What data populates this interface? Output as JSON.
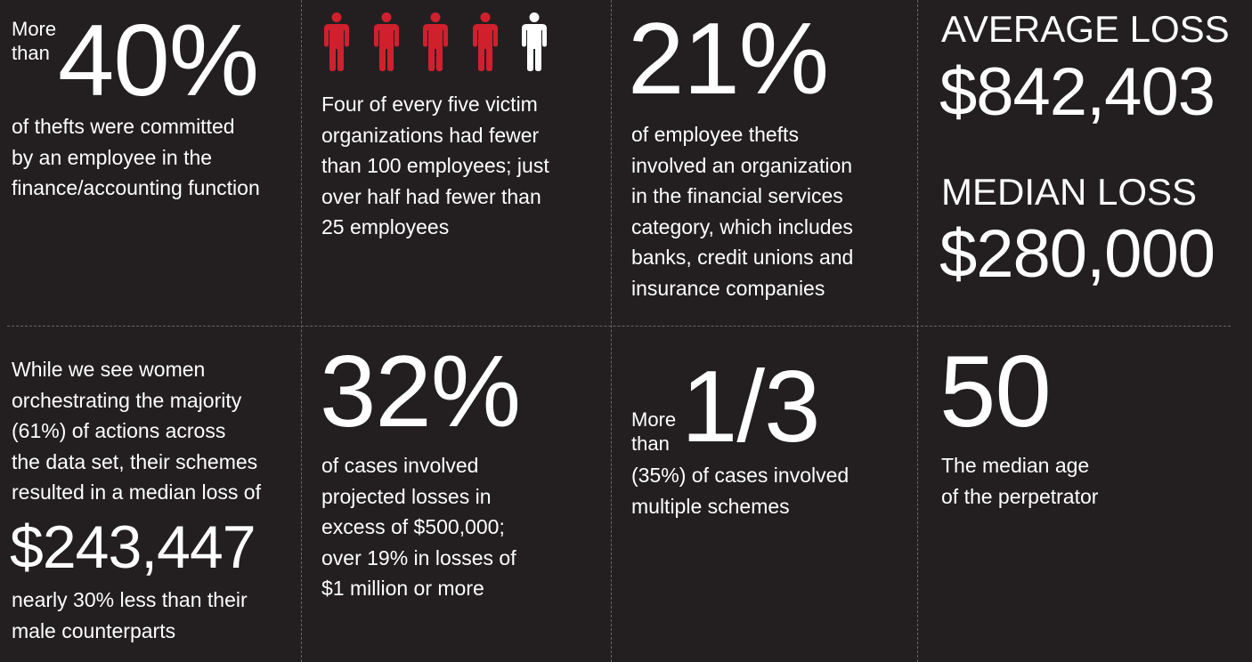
{
  "colors": {
    "background": "#231f20",
    "accent": "#d0202e",
    "text": "#ffffff"
  },
  "stat_finance": {
    "prefix_line1": "More",
    "prefix_line2": "than",
    "value": "40%",
    "lines": [
      "of thefts were committed",
      "by an employee in the",
      "finance/accounting function"
    ]
  },
  "stat_org_size": {
    "icons": [
      {
        "icon": "person-icon",
        "highlighted": true
      },
      {
        "icon": "person-icon",
        "highlighted": true
      },
      {
        "icon": "person-icon",
        "highlighted": true
      },
      {
        "icon": "person-icon",
        "highlighted": true
      },
      {
        "icon": "person-icon",
        "highlighted": false
      }
    ],
    "lines": [
      "Four of every five victim",
      "organizations had fewer",
      "than 100 employees; just",
      "over half had fewer than",
      "25 employees"
    ]
  },
  "stat_financial_services": {
    "value": "21%",
    "lines": [
      "of employee thefts",
      "involved an organization",
      "in the financial services",
      "category, which includes",
      "banks, credit unions and",
      "insurance companies"
    ]
  },
  "stat_losses": {
    "average_label": "AVERAGE LOSS",
    "average_value": "$842,403",
    "median_label": "MEDIAN LOSS",
    "median_value": "$280,000"
  },
  "stat_women": {
    "lines": [
      "While we see women",
      "orchestrating the majority",
      "(61%) of actions across",
      "the data set, their schemes",
      "resulted in a median loss of"
    ],
    "value": "$243,447",
    "after_lines": [
      "nearly 30% less than their",
      "male counterparts"
    ]
  },
  "stat_projected": {
    "value": "32%",
    "lines": [
      "of cases involved",
      "projected losses in",
      "excess of $500,000;",
      "over 19% in losses of",
      "$1 million or more"
    ]
  },
  "stat_multiple": {
    "prefix_line1": "More",
    "prefix_line2": "than",
    "value": "1/3",
    "lines": [
      "(35%) of cases involved",
      "multiple schemes"
    ]
  },
  "stat_age": {
    "value": "50",
    "lines": [
      "The median age",
      "of the perpetrator"
    ]
  }
}
